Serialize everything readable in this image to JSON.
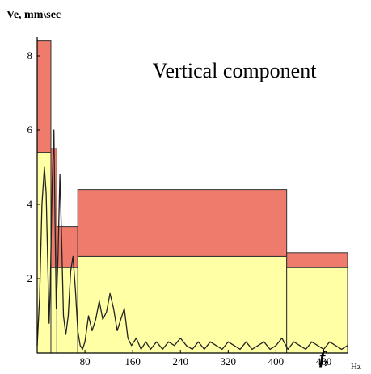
{
  "chart_data": {
    "type": "area",
    "title": "Vertical component",
    "ylabel": "Ve, mm\\sec",
    "xlabel_symbol": "f,",
    "xlabel_unit": "Hz",
    "x_ticks": [
      80,
      160,
      240,
      320,
      400,
      480
    ],
    "y_ticks": [
      2,
      4,
      6,
      8
    ],
    "xlim": [
      0,
      520
    ],
    "ylim": [
      0,
      8.5
    ],
    "colors": {
      "upper_band": "#ee7b6b",
      "lower_band": "#ffffa6",
      "band_stroke": "#333333",
      "spectrum": "#222222",
      "axis": "#000000"
    },
    "bands": [
      {
        "x0": 0,
        "x1": 23,
        "lower": 5.4,
        "upper": 8.4
      },
      {
        "x0": 23,
        "x1": 33,
        "lower": 2.3,
        "upper": 5.5
      },
      {
        "x0": 33,
        "x1": 68,
        "lower": 2.3,
        "upper": 3.4
      },
      {
        "x0": 68,
        "x1": 418,
        "lower": 2.6,
        "upper": 4.4
      },
      {
        "x0": 418,
        "x1": 520,
        "lower": 2.3,
        "upper": 2.7
      }
    ],
    "series": [
      {
        "x": [
          0,
          4,
          8,
          12,
          15,
          18,
          20,
          22,
          25,
          28,
          30,
          32,
          35,
          38,
          41,
          44,
          48,
          52,
          56,
          60,
          64,
          68,
          72,
          76,
          80,
          86,
          92,
          98,
          104,
          110,
          116,
          122,
          128,
          134,
          140,
          146,
          152,
          158,
          166,
          174,
          182,
          190,
          200,
          210,
          220,
          230,
          240,
          250,
          260,
          270,
          280,
          290,
          300,
          310,
          320,
          330,
          340,
          350,
          360,
          370,
          380,
          390,
          400,
          410,
          420,
          430,
          440,
          450,
          460,
          470,
          480,
          490,
          500,
          510,
          520
        ],
        "values": [
          0.2,
          1.5,
          4.0,
          5.0,
          4.3,
          2.2,
          0.8,
          1.8,
          4.5,
          6.0,
          3.4,
          1.2,
          2.6,
          4.8,
          3.0,
          1.0,
          0.5,
          1.0,
          2.2,
          2.6,
          1.7,
          0.6,
          0.2,
          0.1,
          0.3,
          1.0,
          0.6,
          0.9,
          1.4,
          0.9,
          1.1,
          1.6,
          1.2,
          0.6,
          0.9,
          1.2,
          0.4,
          0.2,
          0.4,
          0.1,
          0.3,
          0.1,
          0.3,
          0.1,
          0.3,
          0.2,
          0.4,
          0.2,
          0.1,
          0.3,
          0.1,
          0.3,
          0.2,
          0.1,
          0.3,
          0.2,
          0.1,
          0.3,
          0.1,
          0.2,
          0.3,
          0.1,
          0.2,
          0.4,
          0.1,
          0.3,
          0.2,
          0.1,
          0.3,
          0.2,
          0.1,
          0.3,
          0.2,
          0.1,
          0.2
        ]
      }
    ]
  }
}
